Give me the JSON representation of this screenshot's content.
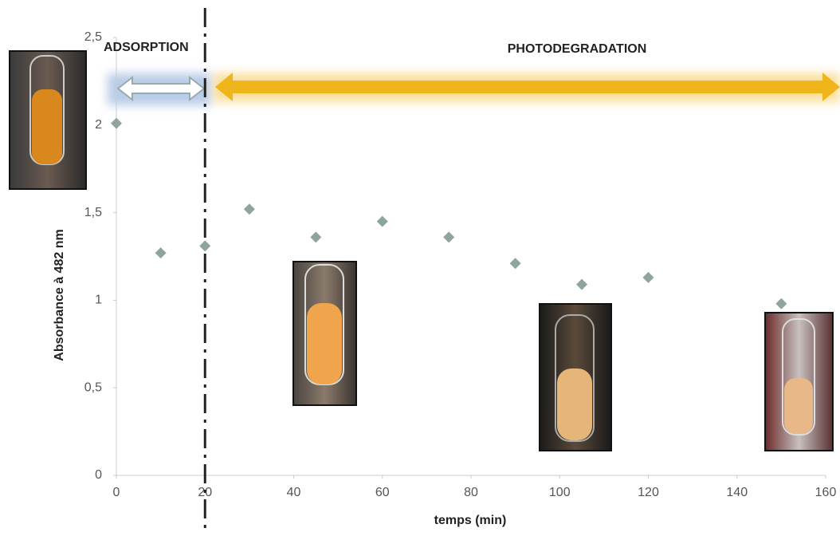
{
  "chart_data": {
    "type": "scatter",
    "x_label": "temps (min)",
    "y_label": "Absorbance à 482 nm",
    "annotations": [
      "ADSORPTION",
      "PHOTODEGRADATION"
    ],
    "vline_x": 20,
    "x": [
      0,
      10,
      20,
      30,
      45,
      60,
      75,
      90,
      105,
      120,
      150
    ],
    "series": [
      {
        "name": "Absorbance",
        "color": "#8fa59b",
        "values": [
          2.01,
          1.27,
          1.31,
          1.52,
          1.36,
          1.45,
          1.36,
          1.21,
          1.09,
          1.13,
          0.98
        ]
      }
    ],
    "xlim": [
      0,
      160
    ],
    "xticks": [
      0,
      20,
      40,
      60,
      80,
      100,
      120,
      140,
      160
    ],
    "ylim": [
      0,
      2.5
    ],
    "yticks": [
      0,
      {
        "value": 0.5,
        "label": "0,5"
      },
      1,
      {
        "value": 1.5,
        "label": "1,5"
      },
      2,
      {
        "value": 2.5,
        "label": "2,5"
      }
    ],
    "grid": false
  }
}
